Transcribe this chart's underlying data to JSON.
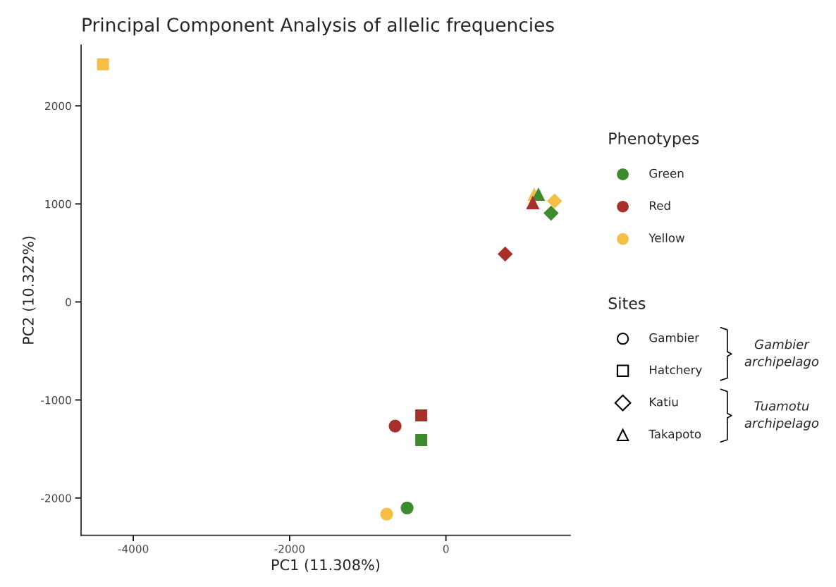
{
  "chart_data": {
    "type": "scatter",
    "title": "Principal Component Analysis of allelic frequencies",
    "xlabel": "PC1 (11.308%)",
    "ylabel": "PC2 (10.322%)",
    "xlim": [
      -4668,
      1589
    ],
    "ylim": [
      -2381,
      2619
    ],
    "xticks": [
      -4000,
      -2000,
      0
    ],
    "yticks": [
      -2000,
      -1000,
      0,
      1000,
      2000
    ],
    "grid": false,
    "series": [
      {
        "marker": "circle",
        "x": [
          -497,
          -650,
          -758
        ],
        "values": [
          -2101,
          -1266,
          -2165
        ],
        "colors": [
          "#3e8a2e",
          "#a8302b",
          "#f5bf45"
        ]
      },
      {
        "marker": "square",
        "x": [
          -316,
          -316,
          -4388
        ],
        "values": [
          -1410,
          -1158,
          2424
        ],
        "colors": [
          "#3e8a2e",
          "#a8302b",
          "#f5bf45"
        ]
      },
      {
        "marker": "diamond",
        "x": [
          1345,
          758,
          1390
        ],
        "values": [
          906,
          489,
          1029
        ],
        "colors": [
          "#3e8a2e",
          "#a8302b",
          "#f5bf45"
        ]
      },
      {
        "marker": "triangle",
        "x": [
          1129,
          1183,
          1111
        ],
        "values": [
          1100,
          1100,
          1014
        ],
        "colors": [
          "#f5bf45",
          "#3e8a2e",
          "#a8302b"
        ]
      }
    ],
    "annotations": [
      "Phenotypes",
      "Green",
      "Red",
      "Yellow",
      "Sites",
      "Gambier",
      "Hatchery",
      "Katiu",
      "Takapoto",
      "Gambier\narchipelago",
      "Tuamotu\narchipelago"
    ]
  }
}
